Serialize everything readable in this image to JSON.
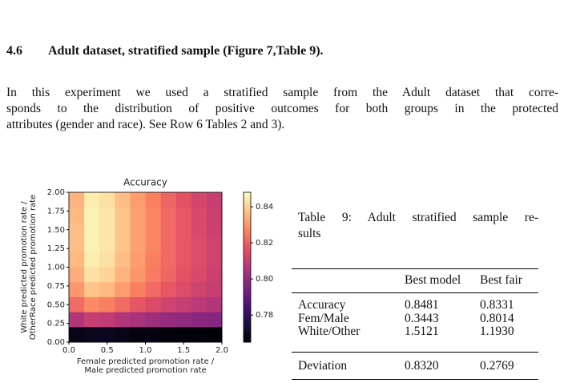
{
  "section": {
    "number": "4.6",
    "title": "Adult dataset, stratified sample (Figure 7,Table 9)."
  },
  "paragraph": [
    "In this experiment we used a stratified sample from the Adult dataset that corre-",
    "sponds to the distribution of positive outcomes for both groups in the protected",
    "attributes (gender and race). See Row 6 Tables 2 and 3)."
  ],
  "figure": {
    "chart_data": {
      "type": "heatmap",
      "title": "Accuracy",
      "x_label": [
        "Female predicted promotion rate /",
        "Male predicted promotion rate"
      ],
      "y_label": [
        "White predicted promotion rate /",
        "OtherRace predicted promotion rate"
      ],
      "x": [
        0.1,
        0.3,
        0.5,
        0.7,
        0.9,
        1.1,
        1.3,
        1.5,
        1.7,
        1.9
      ],
      "y": [
        1.9,
        1.7,
        1.5,
        1.3,
        1.1,
        0.9,
        0.7,
        0.5,
        0.3,
        0.1
      ],
      "z": [
        [
          0.835,
          0.845,
          0.843,
          0.837,
          0.831,
          0.826,
          0.821,
          0.817,
          0.813,
          0.81
        ],
        [
          0.836,
          0.846,
          0.844,
          0.838,
          0.832,
          0.827,
          0.822,
          0.818,
          0.814,
          0.811
        ],
        [
          0.837,
          0.846,
          0.844,
          0.838,
          0.832,
          0.827,
          0.822,
          0.818,
          0.814,
          0.811
        ],
        [
          0.837,
          0.846,
          0.844,
          0.838,
          0.832,
          0.827,
          0.822,
          0.818,
          0.815,
          0.812
        ],
        [
          0.836,
          0.845,
          0.843,
          0.837,
          0.831,
          0.826,
          0.822,
          0.818,
          0.815,
          0.812
        ],
        [
          0.834,
          0.843,
          0.841,
          0.835,
          0.83,
          0.825,
          0.821,
          0.817,
          0.814,
          0.811
        ],
        [
          0.83,
          0.838,
          0.836,
          0.831,
          0.826,
          0.822,
          0.818,
          0.815,
          0.812,
          0.81
        ],
        [
          0.822,
          0.828,
          0.826,
          0.822,
          0.818,
          0.815,
          0.812,
          0.81,
          0.808,
          0.806
        ],
        [
          0.806,
          0.81,
          0.809,
          0.806,
          0.804,
          0.802,
          0.8,
          0.799,
          0.798,
          0.797
        ],
        [
          0.768,
          0.769,
          0.769,
          0.768,
          0.767,
          0.767,
          0.766,
          0.766,
          0.766,
          0.765
        ]
      ],
      "xlim": [
        0,
        2
      ],
      "ylim": [
        0,
        2
      ],
      "xticks": [
        {
          "value": 0,
          "label": "0.0"
        },
        0.5,
        {
          "value": 1,
          "label": "1.0"
        },
        1.5,
        {
          "value": 2,
          "label": "2.0"
        }
      ],
      "yticks": [
        {
          "value": 0,
          "label": "0.00"
        },
        0.25,
        {
          "value": 0.5,
          "label": "0.50"
        },
        0.75,
        {
          "value": 1,
          "label": "1.00"
        },
        1.25,
        {
          "value": 1.5,
          "label": "1.50"
        },
        1.75,
        {
          "value": 2,
          "label": "2.00"
        }
      ],
      "colormap": "magma",
      "zlim": [
        0.765,
        0.848
      ],
      "zticks": [
        0.78,
        {
          "value": 0.8,
          "label": "0.80"
        },
        0.82,
        0.84
      ]
    }
  },
  "table": {
    "caption": [
      "Table 9: Adult stratified sample re-",
      "sults"
    ],
    "header": [
      "Best model",
      "Best fair"
    ],
    "rows": [
      [
        "Accuracy",
        "0.8481",
        "0.8331"
      ],
      [
        "Fem/Male",
        "0.3443",
        "0.8014"
      ],
      [
        "White/Other",
        "1.5121",
        "1.1930"
      ],
      [
        "Deviation",
        "0.8320",
        "0.2769"
      ]
    ]
  }
}
